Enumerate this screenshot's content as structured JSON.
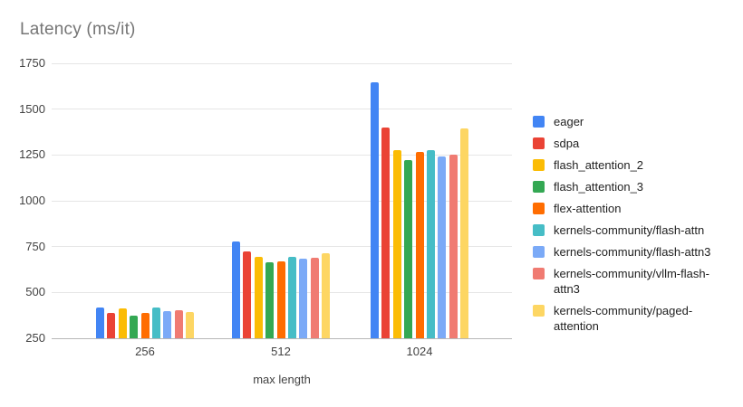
{
  "title": "Latency (ms/it)",
  "chart_data": {
    "type": "bar",
    "title": "Latency (ms/it)",
    "xlabel": "max length",
    "ylabel": "",
    "categories": [
      "256",
      "512",
      "1024"
    ],
    "yticks": [
      "250",
      "500",
      "750",
      "1000",
      "1250",
      "1500",
      "1750"
    ],
    "ylim": [
      250,
      1750
    ],
    "grid": true,
    "legend_position": "right",
    "series": [
      {
        "name": "eager",
        "color": "#4285F4",
        "values": [
          419,
          780,
          1645
        ]
      },
      {
        "name": "sdpa",
        "color": "#EA4335",
        "values": [
          390,
          723,
          1400
        ]
      },
      {
        "name": "flash_attention_2",
        "color": "#FBBC04",
        "values": [
          411,
          696,
          1276
        ]
      },
      {
        "name": "flash_attention_3",
        "color": "#34A853",
        "values": [
          375,
          663,
          1220
        ]
      },
      {
        "name": "flex-attention",
        "color": "#FF6D01",
        "values": [
          387,
          671,
          1268
        ]
      },
      {
        "name": "kernels-community/flash-attn",
        "color": "#46BDC6",
        "values": [
          417,
          694,
          1275
        ]
      },
      {
        "name": "kernels-community/flash-attn3",
        "color": "#7BAAF7",
        "values": [
          399,
          685,
          1240
        ]
      },
      {
        "name": "kernels-community/vllm-flash-attn3",
        "color": "#F07B72",
        "values": [
          404,
          689,
          1253
        ]
      },
      {
        "name": "kernels-community/paged-attention",
        "color": "#FDD663",
        "values": [
          393,
          712,
          1393
        ]
      }
    ]
  },
  "colors": {
    "background": "#ffffff",
    "title_text": "#757575",
    "axis_text": "#424242",
    "legend_text": "#212121",
    "gridline": "#e6e6e6",
    "baseline": "#b7b7b7"
  }
}
